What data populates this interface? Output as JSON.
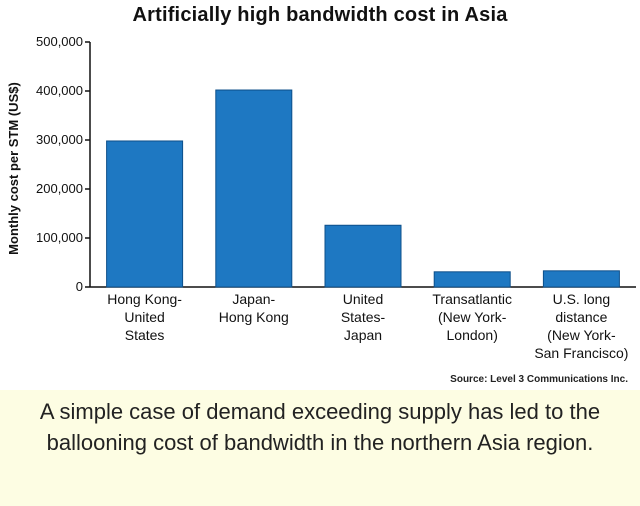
{
  "chart_data": {
    "type": "bar",
    "title": "Artificially high bandwidth cost in Asia",
    "ylabel": "Monthly cost per STM (US$)",
    "xlabel": "",
    "categories": [
      [
        "Hong Kong-",
        "United",
        "States"
      ],
      [
        "Japan-",
        "Hong Kong"
      ],
      [
        "United",
        "States-",
        "Japan"
      ],
      [
        "Transatlantic",
        "(New York-",
        "London)"
      ],
      [
        "U.S. long",
        "distance",
        "(New York-",
        "San Francisco)"
      ]
    ],
    "values": [
      298000,
      402000,
      126000,
      31000,
      33000
    ],
    "ylim": [
      0,
      500000
    ],
    "yticks": [
      "0",
      "100,000",
      "200,000",
      "300,000",
      "400,000",
      "500,000"
    ],
    "bar_color": "#1e78c2",
    "grid": false
  },
  "source": "Source: Level 3 Communications Inc.",
  "caption": "A simple case of demand exceeding supply has led to the ballooning cost of bandwidth in the northern Asia region."
}
